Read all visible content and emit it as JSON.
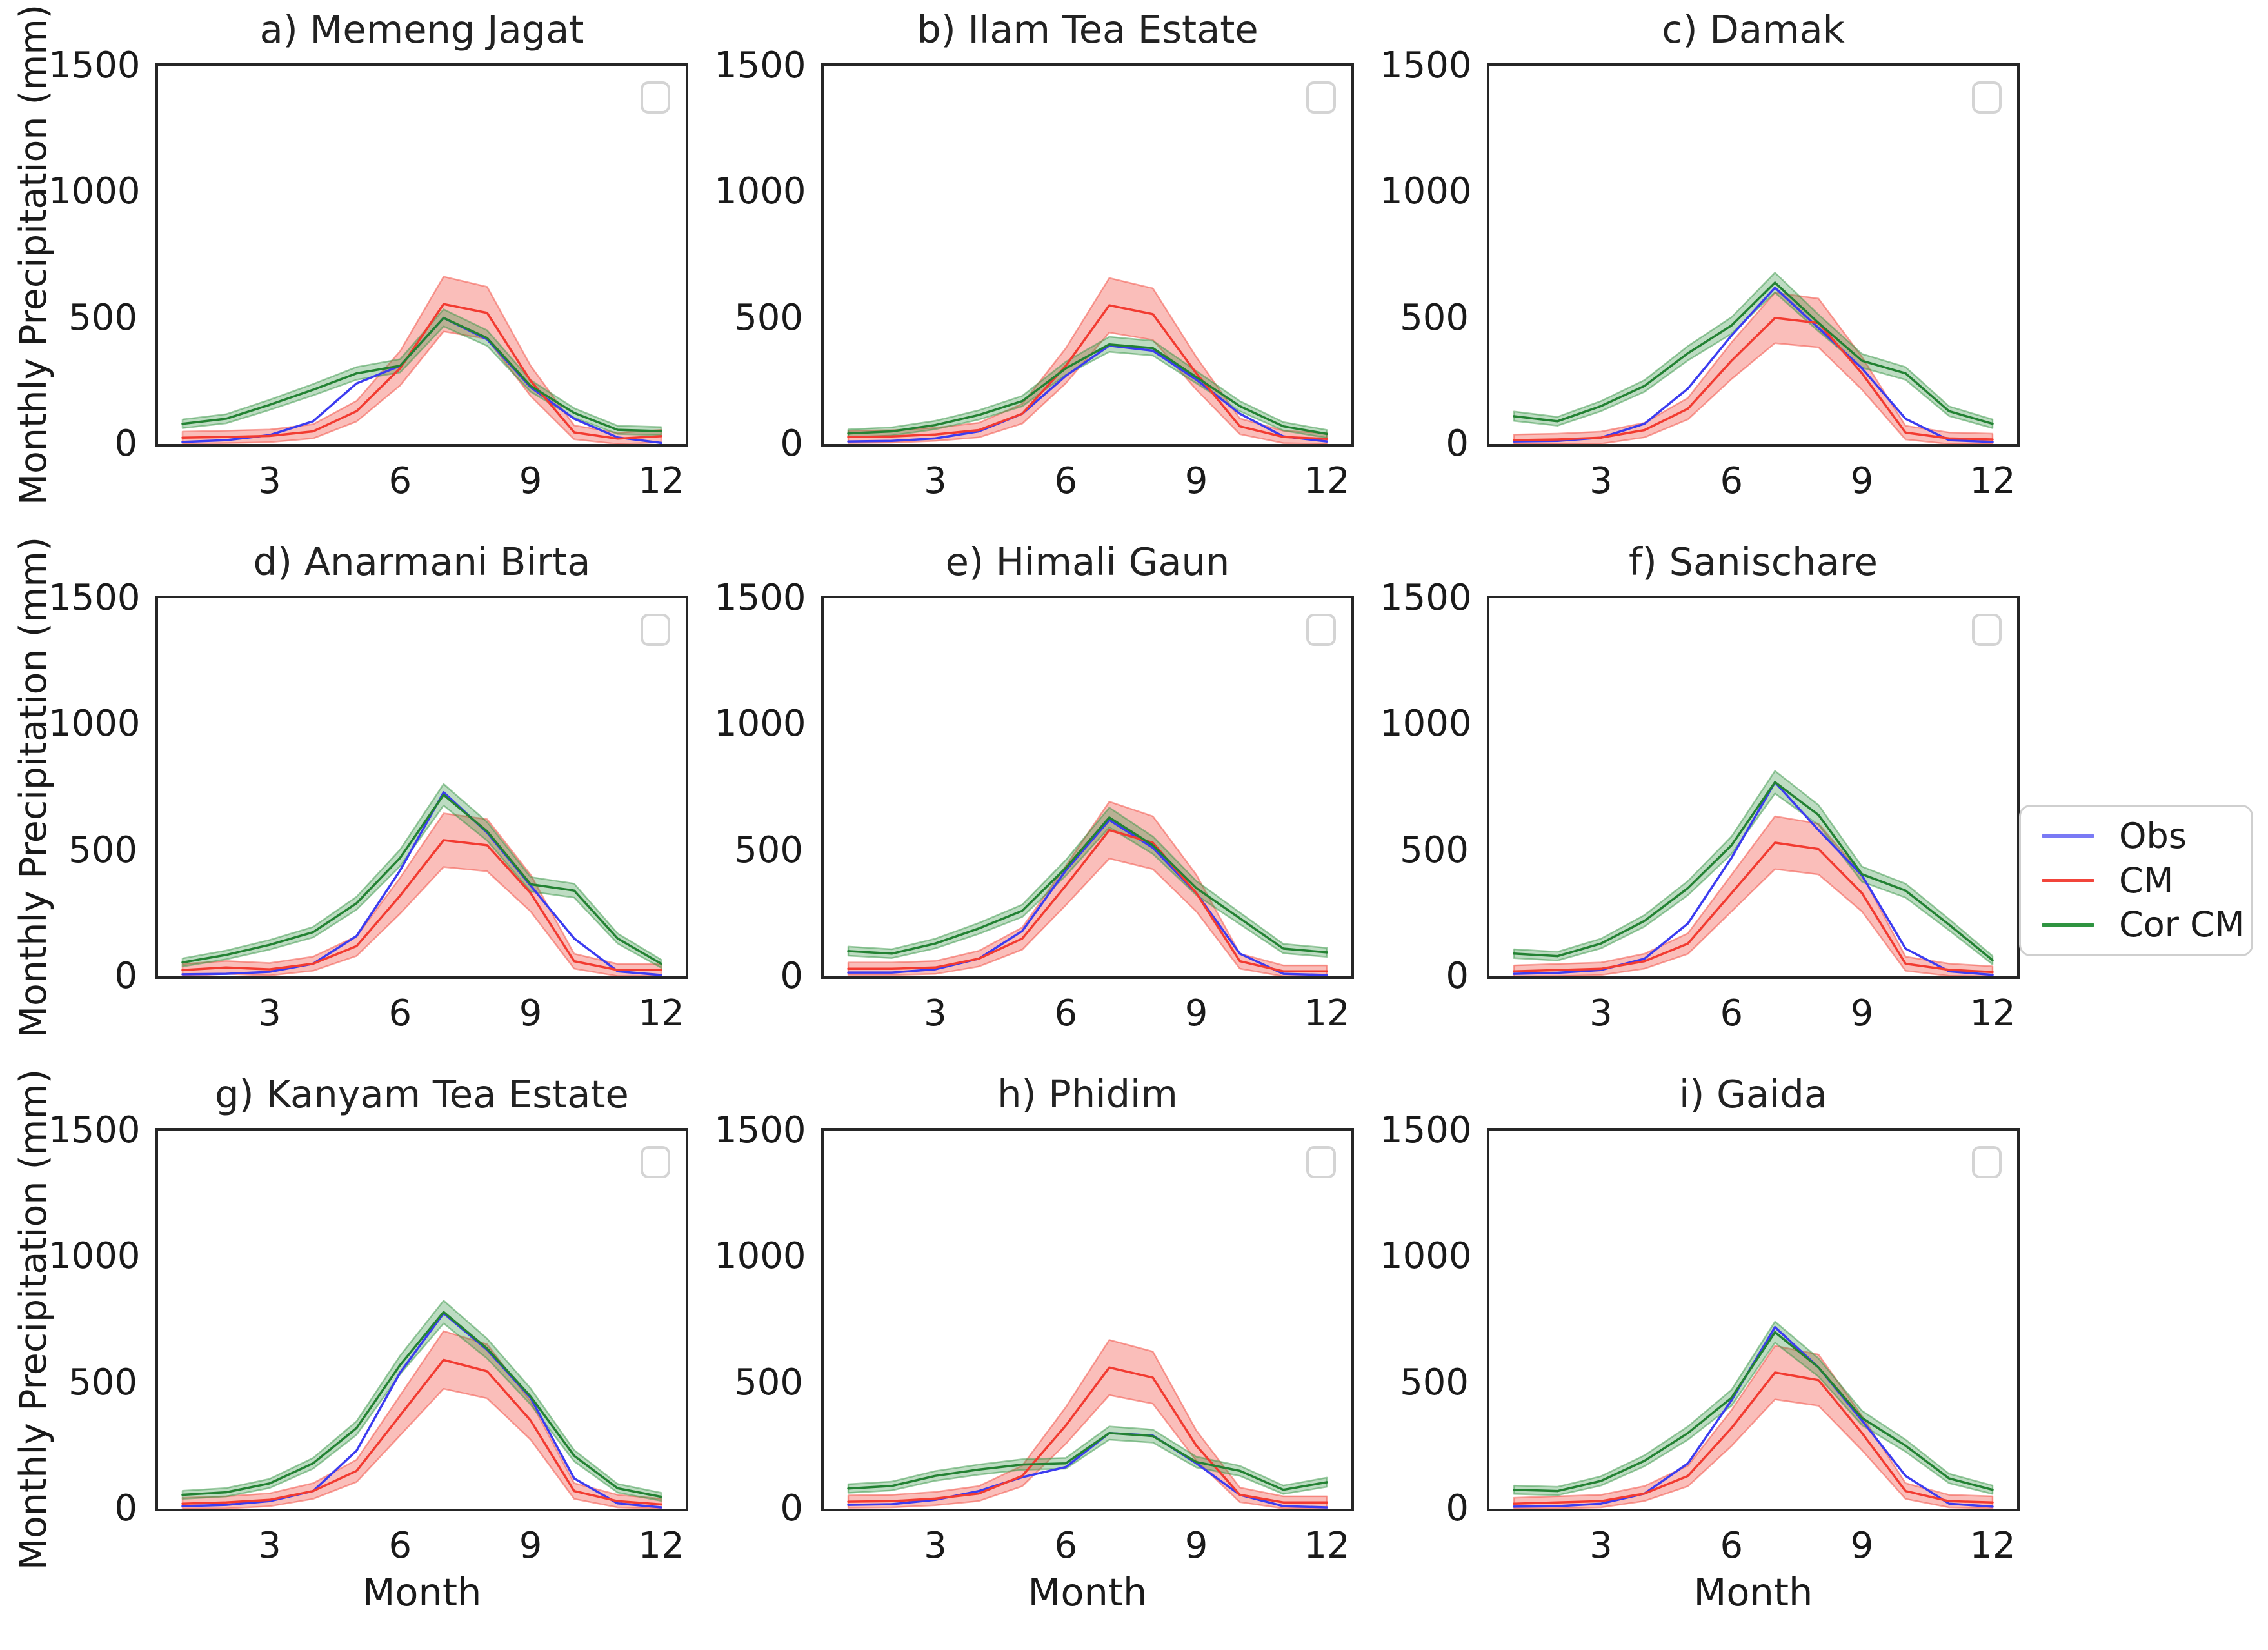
{
  "figure": {
    "ylabel": "Monthly Precipitation (mm)",
    "xlabel": "Month",
    "x_ticks": [
      3,
      6,
      9,
      12
    ],
    "y_ticks": [
      0,
      500,
      1000,
      1500
    ],
    "xlim": [
      1,
      12
    ],
    "ylim": [
      0,
      1500
    ],
    "grid": false,
    "background": "#ffffff",
    "spine_color": "#262626"
  },
  "legend": {
    "position": "right-middle",
    "items": [
      {
        "label": "Obs",
        "color": "#7a7af5"
      },
      {
        "label": "CM",
        "color": "#f2453b"
      },
      {
        "label": "Cor CM",
        "color": "#2f9441"
      }
    ]
  },
  "series_styles": {
    "Obs": {
      "color": "#3c3cf0",
      "band": null
    },
    "CM": {
      "color": "#f23b31",
      "band": {
        "base": 20,
        "frac": 0.16,
        "fill": "rgba(242,85,74,0.38)",
        "stroke": "rgba(242,85,74,0.55)"
      }
    },
    "Cor CM": {
      "color": "#238233",
      "band": {
        "base": 14,
        "frac": 0.04,
        "fill": "rgba(56,150,70,0.33)",
        "stroke": "rgba(56,150,70,0.5)"
      }
    }
  },
  "chart_data": [
    {
      "type": "line",
      "title": "a) Memeng Jagat",
      "x": [
        1,
        2,
        3,
        4,
        5,
        6,
        7,
        8,
        9,
        10,
        11,
        12
      ],
      "series": [
        {
          "name": "Obs",
          "values": [
            8,
            15,
            35,
            90,
            240,
            310,
            500,
            415,
            225,
            100,
            26,
            4
          ]
        },
        {
          "name": "CM",
          "values": [
            25,
            28,
            32,
            50,
            130,
            300,
            555,
            520,
            250,
            46,
            21,
            31
          ]
        },
        {
          "name": "Cor CM",
          "values": [
            80,
            100,
            155,
            215,
            280,
            310,
            500,
            420,
            230,
            123,
            56,
            51
          ]
        }
      ]
    },
    {
      "type": "line",
      "title": "b) Ilam Tea Estate",
      "x": [
        1,
        2,
        3,
        4,
        5,
        6,
        7,
        8,
        9,
        10,
        11,
        12
      ],
      "series": [
        {
          "name": "Obs",
          "values": [
            10,
            12,
            22,
            50,
            120,
            270,
            390,
            370,
            255,
            120,
            30,
            10
          ]
        },
        {
          "name": "CM",
          "values": [
            28,
            30,
            38,
            55,
            120,
            310,
            550,
            515,
            280,
            70,
            28,
            20
          ]
        },
        {
          "name": "Cor CM",
          "values": [
            42,
            50,
            75,
            115,
            170,
            300,
            395,
            380,
            265,
            150,
            70,
            40
          ]
        }
      ]
    },
    {
      "type": "line",
      "title": "c) Damak",
      "x": [
        1,
        2,
        3,
        4,
        5,
        6,
        7,
        8,
        9,
        10,
        11,
        12
      ],
      "series": [
        {
          "name": "Obs",
          "values": [
            10,
            12,
            25,
            80,
            220,
            430,
            620,
            460,
            300,
            100,
            15,
            8
          ]
        },
        {
          "name": "CM",
          "values": [
            15,
            18,
            25,
            55,
            140,
            330,
            500,
            480,
            280,
            45,
            22,
            18
          ]
        },
        {
          "name": "Cor CM",
          "values": [
            110,
            90,
            150,
            230,
            360,
            470,
            640,
            480,
            330,
            280,
            130,
            80
          ]
        }
      ]
    },
    {
      "type": "line",
      "title": "d) Anarmani Birta",
      "x": [
        1,
        2,
        3,
        4,
        5,
        6,
        7,
        8,
        9,
        10,
        11,
        12
      ],
      "series": [
        {
          "name": "Obs",
          "values": [
            8,
            10,
            18,
            50,
            160,
            420,
            730,
            570,
            360,
            150,
            20,
            5
          ]
        },
        {
          "name": "CM",
          "values": [
            25,
            35,
            28,
            50,
            120,
            320,
            540,
            520,
            330,
            60,
            25,
            25
          ]
        },
        {
          "name": "Cor CM",
          "values": [
            55,
            85,
            125,
            175,
            290,
            470,
            720,
            575,
            365,
            340,
            150,
            50
          ]
        }
      ]
    },
    {
      "type": "line",
      "title": "e) Himali Gaun",
      "x": [
        1,
        2,
        3,
        4,
        5,
        6,
        7,
        8,
        9,
        10,
        11,
        12
      ],
      "series": [
        {
          "name": "Obs",
          "values": [
            15,
            15,
            28,
            70,
            180,
            420,
            620,
            510,
            330,
            90,
            10,
            5
          ]
        },
        {
          "name": "CM",
          "values": [
            30,
            30,
            35,
            70,
            150,
            360,
            580,
            530,
            330,
            60,
            20,
            20
          ]
        },
        {
          "name": "Cor CM",
          "values": [
            100,
            90,
            130,
            190,
            260,
            430,
            630,
            520,
            350,
            230,
            110,
            95
          ]
        }
      ]
    },
    {
      "type": "line",
      "title": "f) Sanischare",
      "x": [
        1,
        2,
        3,
        4,
        5,
        6,
        7,
        8,
        9,
        10,
        11,
        12
      ],
      "series": [
        {
          "name": "Obs",
          "values": [
            10,
            14,
            25,
            70,
            210,
            470,
            770,
            580,
            400,
            110,
            20,
            6
          ]
        },
        {
          "name": "CM",
          "values": [
            20,
            25,
            30,
            60,
            130,
            330,
            530,
            505,
            330,
            50,
            26,
            17
          ]
        },
        {
          "name": "Cor CM",
          "values": [
            90,
            80,
            130,
            220,
            350,
            520,
            770,
            640,
            405,
            340,
            205,
            64
          ]
        }
      ]
    },
    {
      "type": "line",
      "title": "g) Kanyam Tea Estate",
      "x": [
        1,
        2,
        3,
        4,
        5,
        6,
        7,
        8,
        9,
        10,
        11,
        12
      ],
      "series": [
        {
          "name": "Obs",
          "values": [
            10,
            15,
            30,
            70,
            230,
            540,
            775,
            630,
            440,
            120,
            21,
            5
          ]
        },
        {
          "name": "CM",
          "values": [
            20,
            25,
            35,
            70,
            150,
            370,
            590,
            545,
            350,
            70,
            30,
            17
          ]
        },
        {
          "name": "Cor CM",
          "values": [
            55,
            65,
            100,
            180,
            320,
            570,
            780,
            635,
            445,
            210,
            81,
            47
          ]
        }
      ]
    },
    {
      "type": "line",
      "title": "h) Phidim",
      "x": [
        1,
        2,
        3,
        4,
        5,
        6,
        7,
        8,
        9,
        10,
        11,
        12
      ],
      "series": [
        {
          "name": "Obs",
          "values": [
            15,
            18,
            35,
            70,
            125,
            165,
            300,
            290,
            180,
            55,
            10,
            5
          ]
        },
        {
          "name": "CM",
          "values": [
            28,
            30,
            40,
            60,
            130,
            330,
            560,
            520,
            250,
            55,
            25,
            25
          ]
        },
        {
          "name": "Cor CM",
          "values": [
            80,
            90,
            130,
            155,
            175,
            180,
            300,
            288,
            185,
            150,
            75,
            105
          ]
        }
      ]
    },
    {
      "type": "line",
      "title": "i) Gaida",
      "x": [
        1,
        2,
        3,
        4,
        5,
        6,
        7,
        8,
        9,
        10,
        11,
        12
      ],
      "series": [
        {
          "name": "Obs",
          "values": [
            8,
            10,
            20,
            60,
            180,
            430,
            720,
            560,
            350,
            130,
            20,
            8
          ]
        },
        {
          "name": "CM",
          "values": [
            20,
            25,
            30,
            60,
            130,
            320,
            540,
            510,
            300,
            70,
            30,
            25
          ]
        },
        {
          "name": "Cor CM",
          "values": [
            75,
            70,
            110,
            190,
            300,
            440,
            700,
            560,
            360,
            250,
            120,
            75
          ]
        }
      ]
    }
  ]
}
